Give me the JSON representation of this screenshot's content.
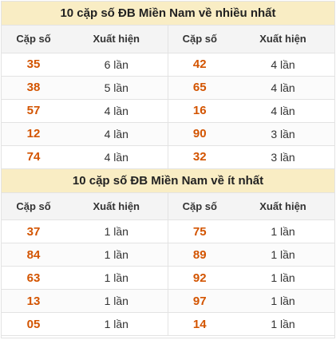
{
  "sections": [
    {
      "title": "10 cặp số ĐB Miền Nam về nhiều nhất",
      "headers": [
        "Cặp số",
        "Xuất hiện",
        "Cặp số",
        "Xuất hiện"
      ],
      "rows": [
        {
          "a_num": "35",
          "a_cnt": "6 lần",
          "b_num": "42",
          "b_cnt": "4 lần"
        },
        {
          "a_num": "38",
          "a_cnt": "5 lần",
          "b_num": "65",
          "b_cnt": "4 lần"
        },
        {
          "a_num": "57",
          "a_cnt": "4 lần",
          "b_num": "16",
          "b_cnt": "4 lần"
        },
        {
          "a_num": "12",
          "a_cnt": "4 lần",
          "b_num": "90",
          "b_cnt": "3 lần"
        },
        {
          "a_num": "74",
          "a_cnt": "4 lần",
          "b_num": "32",
          "b_cnt": "3 lần"
        }
      ]
    },
    {
      "title": "10 cặp số ĐB Miền Nam về ít nhất",
      "headers": [
        "Cặp số",
        "Xuất hiện",
        "Cặp số",
        "Xuất hiện"
      ],
      "rows": [
        {
          "a_num": "37",
          "a_cnt": "1 lần",
          "b_num": "75",
          "b_cnt": "1 lần"
        },
        {
          "a_num": "84",
          "a_cnt": "1 lần",
          "b_num": "89",
          "b_cnt": "1 lần"
        },
        {
          "a_num": "63",
          "a_cnt": "1 lần",
          "b_num": "92",
          "b_cnt": "1 lần"
        },
        {
          "a_num": "13",
          "a_cnt": "1 lần",
          "b_num": "97",
          "b_cnt": "1 lần"
        },
        {
          "a_num": "05",
          "a_cnt": "1 lần",
          "b_num": "14",
          "b_cnt": "1 lần"
        }
      ]
    }
  ],
  "colors": {
    "title_bg": "#f9edc4",
    "number": "#d35400",
    "header_bg": "#f4f4f4",
    "border": "#e3e3e3"
  }
}
